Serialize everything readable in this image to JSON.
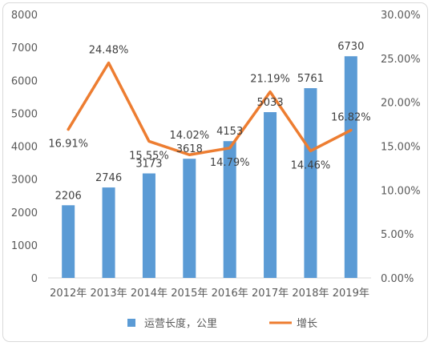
{
  "chart_data": {
    "type": "bar+line",
    "categories": [
      "2012年",
      "2013年",
      "2014年",
      "2015年",
      "2016年",
      "2017年",
      "2018年",
      "2019年"
    ],
    "series": [
      {
        "name": "运营长度，公里",
        "type": "bar",
        "axis": "left",
        "color": "#5b9bd5",
        "values": [
          2206,
          2746,
          3173,
          3618,
          4153,
          5033,
          5761,
          6730
        ],
        "labels": [
          "2206",
          "2746",
          "3173",
          "3618",
          "4153",
          "5033",
          "5761",
          "6730"
        ]
      },
      {
        "name": "增长",
        "type": "line",
        "axis": "right",
        "color": "#ed7d31",
        "values": [
          0.1691,
          0.2448,
          0.1555,
          0.1402,
          0.1479,
          0.2119,
          0.1446,
          0.1682
        ],
        "labels": [
          "16.91%",
          "24.48%",
          "15.55%",
          "14.02%",
          "14.79%",
          "21.19%",
          "14.46%",
          "16.82%"
        ]
      }
    ],
    "y_left": {
      "lim": [
        0,
        8000
      ],
      "ticks": [
        "0",
        "1000",
        "2000",
        "3000",
        "4000",
        "5000",
        "6000",
        "7000",
        "8000"
      ]
    },
    "y_right": {
      "lim": [
        0,
        0.3
      ],
      "ticks": [
        "0.00%",
        "5.00%",
        "10.00%",
        "15.00%",
        "20.00%",
        "25.00%",
        "30.00%"
      ]
    },
    "grid": false,
    "legend": "bottom"
  }
}
